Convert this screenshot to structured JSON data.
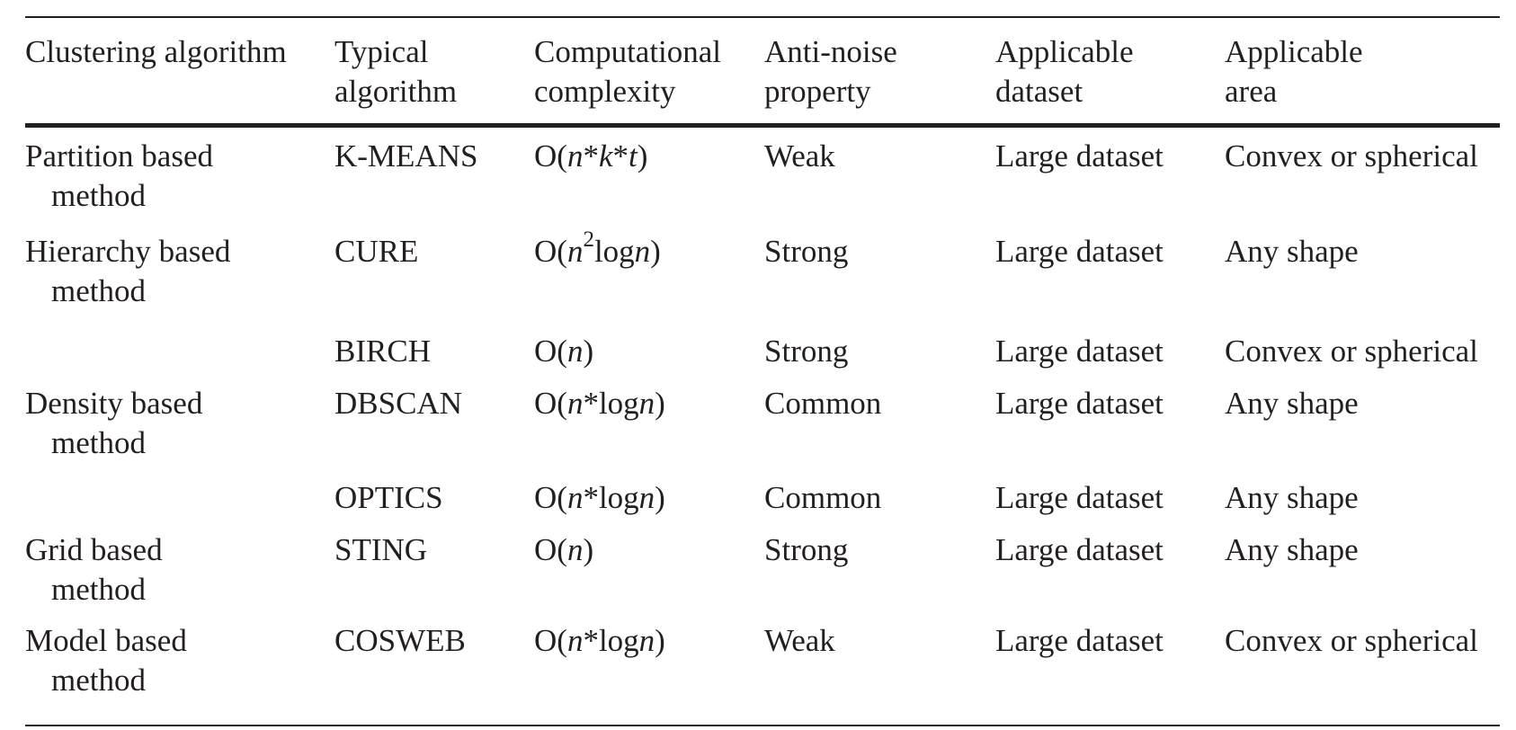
{
  "table": {
    "headers": [
      {
        "line1": "Clustering algorithm",
        "line2": ""
      },
      {
        "line1": "Typical",
        "line2": "algorithm"
      },
      {
        "line1": "Computational",
        "line2": "complexity"
      },
      {
        "line1": "Anti-noise",
        "line2": "property"
      },
      {
        "line1": "Applicable",
        "line2": "dataset"
      },
      {
        "line1": "Applicable",
        "line2": "area"
      }
    ],
    "rows": [
      {
        "method_line1": "Partition based",
        "method_line2": "method",
        "algorithm": "K-MEANS",
        "complexity": "O(n*k*t)",
        "anti_noise": "Weak",
        "dataset": "Large dataset",
        "area": "Convex or spherical"
      },
      {
        "method_line1": "Hierarchy based",
        "method_line2": "method",
        "algorithm": "CURE",
        "complexity": "O(n2logn)",
        "anti_noise": "Strong",
        "dataset": "Large dataset",
        "area": "Any shape"
      },
      {
        "method_line1": "",
        "method_line2": "",
        "algorithm": "BIRCH",
        "complexity": "O(n)",
        "anti_noise": "Strong",
        "dataset": "Large dataset",
        "area": "Convex or spherical"
      },
      {
        "method_line1": "Density based",
        "method_line2": "method",
        "algorithm": "DBSCAN",
        "complexity": "O(n*logn)",
        "anti_noise": "Common",
        "dataset": "Large dataset",
        "area": "Any shape"
      },
      {
        "method_line1": "",
        "method_line2": "",
        "algorithm": "OPTICS",
        "complexity": "O(n*logn)",
        "anti_noise": "Common",
        "dataset": "Large dataset",
        "area": "Any shape"
      },
      {
        "method_line1": "Grid based",
        "method_line2": "method",
        "algorithm": "STING",
        "complexity": "O(n)",
        "anti_noise": "Strong",
        "dataset": "Large dataset",
        "area": "Any shape"
      },
      {
        "method_line1": "Model based",
        "method_line2": "method",
        "algorithm": "COSWEB",
        "complexity": "O(n*logn)",
        "anti_noise": "Weak",
        "dataset": "Large dataset",
        "area": "Convex or spherical"
      }
    ]
  }
}
